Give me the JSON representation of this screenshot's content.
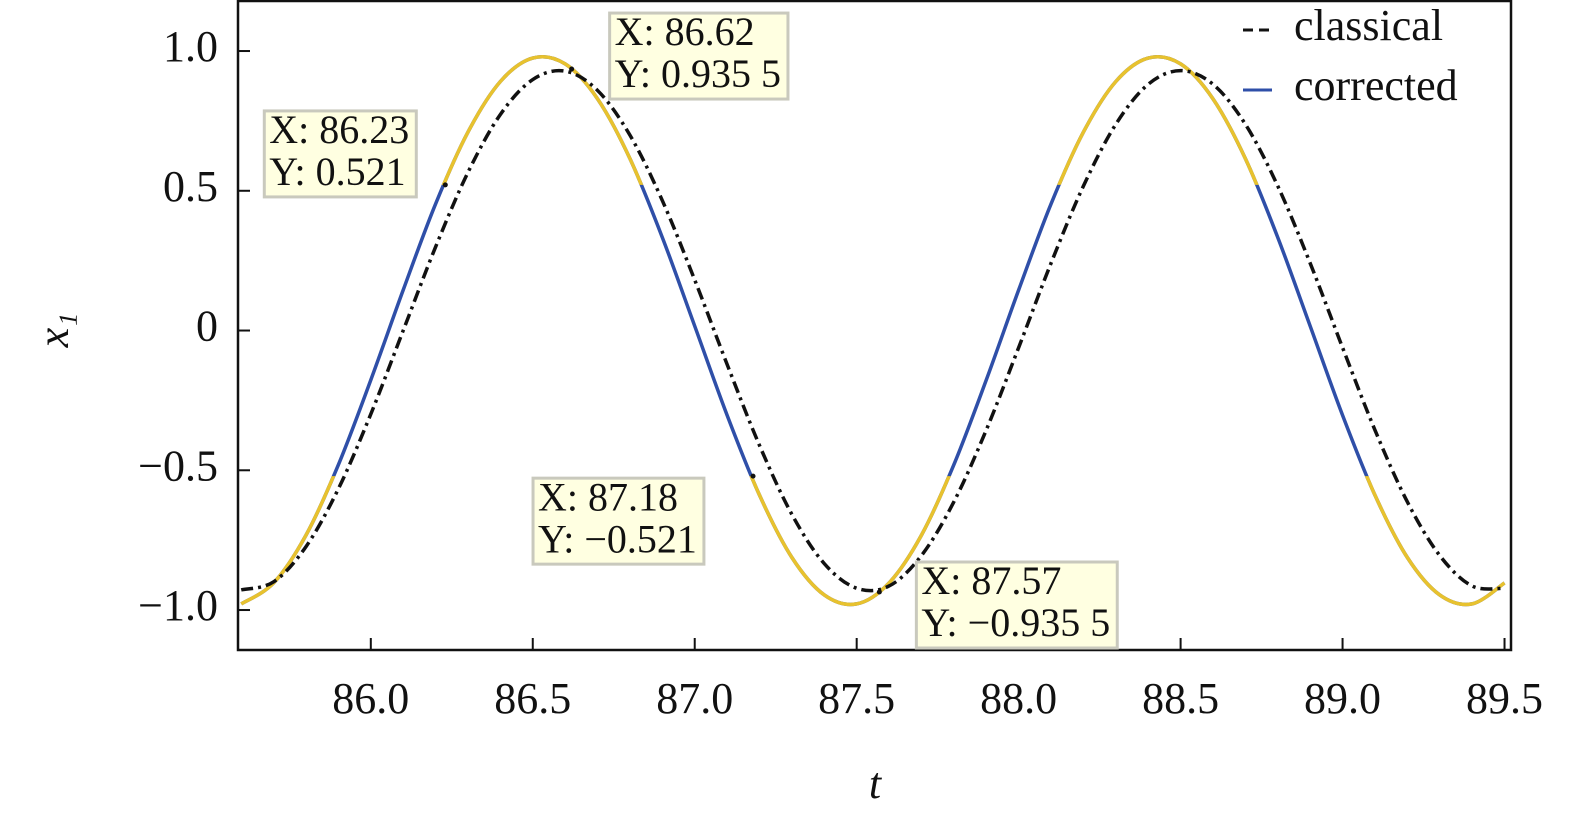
{
  "chart_data": {
    "type": "line",
    "xlabel": "t",
    "ylabel": "x₁",
    "x": [
      85.6,
      85.7,
      85.8,
      85.9,
      86.0,
      86.1,
      86.2,
      86.3,
      86.4,
      86.5,
      86.6,
      86.7,
      86.8,
      86.9,
      87.0,
      87.1,
      87.2,
      87.3,
      87.4,
      87.5,
      87.6,
      87.7,
      87.8,
      87.9,
      88.0,
      88.1,
      88.2,
      88.3,
      88.4,
      88.5,
      88.6,
      88.7,
      88.8,
      88.9,
      89.0,
      89.1,
      89.2,
      89.3,
      89.4,
      89.5
    ],
    "series": [
      {
        "name": "classical",
        "color": "#111111",
        "dash": true,
        "values": [
          -0.928,
          -0.899,
          -0.773,
          -0.566,
          -0.299,
          0.0,
          0.299,
          0.566,
          0.773,
          0.898,
          0.928,
          0.859,
          0.699,
          0.465,
          0.181,
          -0.121,
          -0.411,
          -0.658,
          -0.834,
          -0.922,
          -0.914,
          -0.805,
          -0.613,
          -0.356,
          -0.061,
          0.241,
          0.517,
          0.738,
          0.881,
          0.93,
          0.881,
          0.738,
          0.517,
          0.241,
          -0.061,
          -0.356,
          -0.613,
          -0.805,
          -0.914,
          -0.922
        ]
      },
      {
        "name": "corrected",
        "color": "#2f4fa8",
        "highlight_color": "#e8c22e",
        "values": [
          -0.978,
          -0.903,
          -0.732,
          -0.48,
          -0.177,
          0.145,
          0.453,
          0.71,
          0.891,
          0.975,
          0.954,
          0.829,
          0.615,
          0.333,
          0.016,
          -0.303,
          -0.589,
          -0.812,
          -0.946,
          -0.978,
          -0.903,
          -0.732,
          -0.48,
          -0.177,
          0.145,
          0.453,
          0.71,
          0.891,
          0.975,
          0.954,
          0.829,
          0.615,
          0.333,
          0.016,
          -0.303,
          -0.589,
          -0.812,
          -0.946,
          -0.978,
          -0.903
        ]
      }
    ],
    "xlim": [
      85.59,
      89.52
    ],
    "ylim": [
      -1.143,
      1.179
    ],
    "xticks": [
      {
        "value": 86,
        "label": "86.0"
      },
      86.5,
      {
        "value": 87,
        "label": "87.0"
      },
      87.5,
      {
        "value": 88,
        "label": "88.0"
      },
      88.5,
      {
        "value": 89,
        "label": "89.0"
      },
      89.5
    ],
    "yticks": [
      {
        "value": -1,
        "label": "−1.0"
      },
      {
        "value": -0.5,
        "label": "−0.5"
      },
      0,
      0.5,
      {
        "value": 1,
        "label": "1.0"
      }
    ],
    "legend": "upper right",
    "annotations": [
      {
        "x": 86.23,
        "y": 0.521,
        "lines": [
          "X: 86.23",
          "Y: 0.521"
        ]
      },
      {
        "x": 86.62,
        "y": 0.9355,
        "lines": [
          "X: 86.62",
          "Y: 0.935 5"
        ]
      },
      {
        "x": 87.18,
        "y": -0.521,
        "lines": [
          "X: 87.18",
          "Y: −0.521"
        ]
      },
      {
        "x": 87.57,
        "y": -0.9355,
        "lines": [
          "X: 87.57",
          "Y: −0.935 5"
        ]
      }
    ]
  }
}
